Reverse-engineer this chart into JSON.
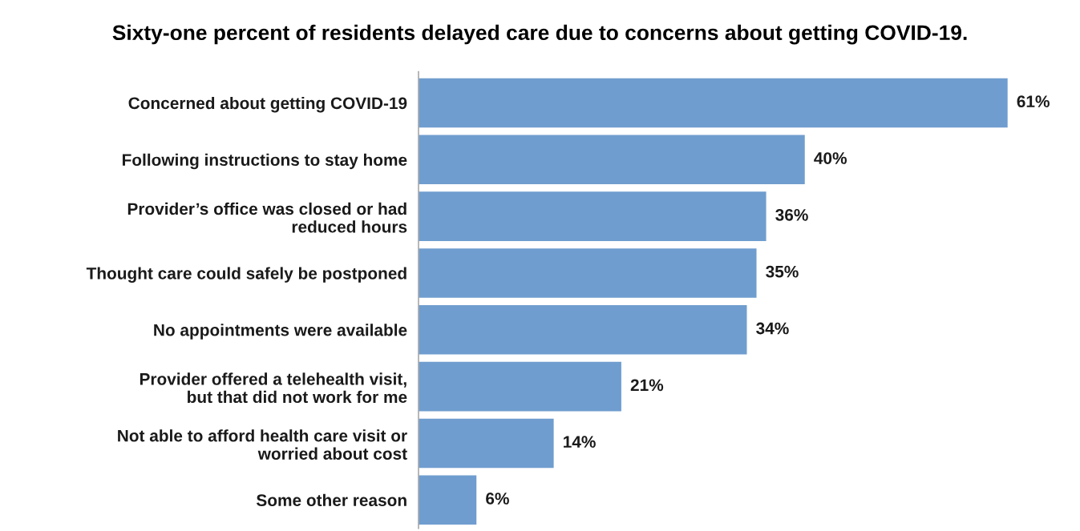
{
  "chart_data": {
    "type": "bar",
    "orientation": "horizontal",
    "title": "Sixty-one percent of residents delayed care due to concerns about getting COVID-19.",
    "categories": [
      "Concerned about getting COVID-19",
      "Following instructions to stay home",
      "Provider’s office was closed or had\nreduced hours",
      "Thought care could safely be postponed",
      "No appointments were available",
      "Provider offered a telehealth visit,\nbut that did not work for me",
      "Not able to afford health care visit or\nworried about cost",
      "Some other reason"
    ],
    "values": [
      61,
      40,
      36,
      35,
      34,
      21,
      14,
      6
    ],
    "value_labels": [
      "61%",
      "40%",
      "36%",
      "35%",
      "34%",
      "21%",
      "14%",
      "6%"
    ],
    "color": "#6f9dcf",
    "tick_labels": "y",
    "grid": false,
    "legend": false
  }
}
